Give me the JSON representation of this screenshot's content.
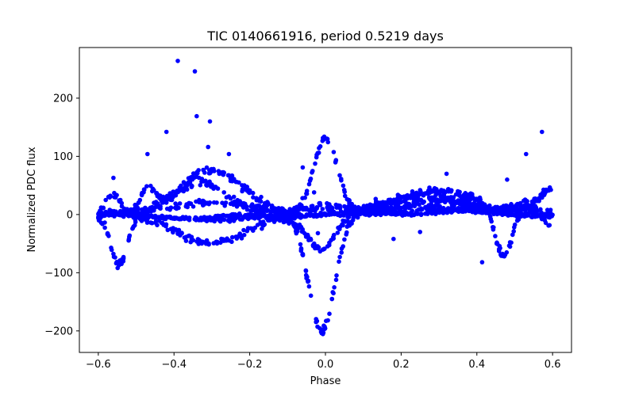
{
  "chart_data": {
    "type": "scatter",
    "title": "TIC 0140661916, period 0.5219 days",
    "xlabel": "Phase",
    "ylabel": "Normalized PDC flux",
    "xlim": [
      -0.65,
      0.65
    ],
    "ylim": [
      -237,
      287
    ],
    "xticks": [
      -0.6,
      -0.4,
      -0.2,
      0.0,
      0.2,
      0.4,
      0.6
    ],
    "xtick_labels": [
      "−0.6",
      "−0.4",
      "−0.2",
      "0.0",
      "0.2",
      "0.4",
      "0.6"
    ],
    "yticks": [
      -200,
      -100,
      0,
      100,
      200
    ],
    "ytick_labels": [
      "−200",
      "−100",
      "0",
      "100",
      "200"
    ],
    "grid": false,
    "marker_color": "#0000ff",
    "series": [
      {
        "outliers": [
          [
            -0.39,
            264
          ],
          [
            -0.345,
            246
          ],
          [
            -0.34,
            169
          ],
          [
            -0.305,
            160
          ],
          [
            -0.42,
            142
          ],
          [
            -0.47,
            104
          ],
          [
            -0.31,
            116
          ],
          [
            -0.255,
            104
          ],
          [
            0.572,
            142
          ],
          [
            0.53,
            104
          ],
          [
            -0.06,
            81
          ],
          [
            -0.02,
            -32
          ],
          [
            0.414,
            -82
          ],
          [
            0.18,
            -42
          ],
          [
            -0.03,
            38
          ],
          [
            0.32,
            70
          ],
          [
            -0.56,
            63
          ],
          [
            -0.22,
            40
          ],
          [
            0.25,
            -30
          ],
          [
            0.48,
            60
          ]
        ]
      }
    ]
  }
}
